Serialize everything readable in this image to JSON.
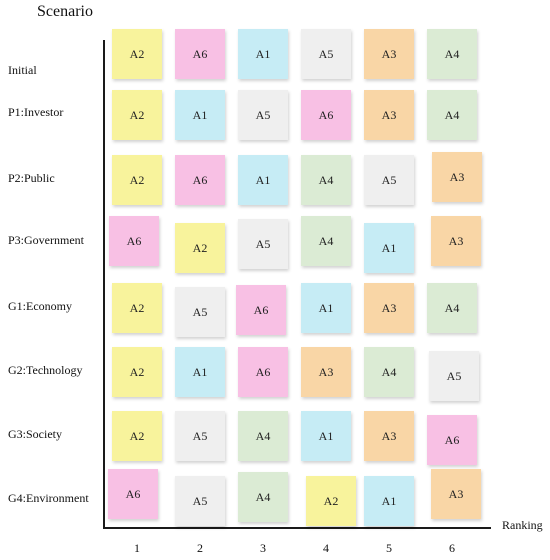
{
  "title": "Scenario",
  "x_axis_label": "Ranking",
  "columns": [
    "1",
    "2",
    "3",
    "4",
    "5",
    "6"
  ],
  "alternative_colors": {
    "A1": "#c6ecf5",
    "A2": "#f8f39c",
    "A3": "#f9d6a6",
    "A4": "#dbebd4",
    "A5": "#efefef",
    "A6": "#f8c0e4"
  },
  "rows": [
    {
      "label": "Initial",
      "ranking": [
        "A2",
        "A6",
        "A1",
        "A5",
        "A3",
        "A4"
      ]
    },
    {
      "label": "P1:Investor",
      "ranking": [
        "A2",
        "A1",
        "A5",
        "A6",
        "A3",
        "A4"
      ]
    },
    {
      "label": "P2:Public",
      "ranking": [
        "A2",
        "A6",
        "A1",
        "A4",
        "A5",
        "A3"
      ]
    },
    {
      "label": "P3:Government",
      "ranking": [
        "A6",
        "A2",
        "A5",
        "A4",
        "A1",
        "A3"
      ]
    },
    {
      "label": "G1:Economy",
      "ranking": [
        "A2",
        "A5",
        "A6",
        "A1",
        "A3",
        "A4"
      ]
    },
    {
      "label": "G2:Technology",
      "ranking": [
        "A2",
        "A1",
        "A6",
        "A3",
        "A4",
        "A5"
      ]
    },
    {
      "label": "G3:Society",
      "ranking": [
        "A2",
        "A5",
        "A4",
        "A1",
        "A3",
        "A6"
      ]
    },
    {
      "label": "G4:Environment",
      "ranking": [
        "A6",
        "A5",
        "A4",
        "A2",
        "A1",
        "A3"
      ]
    }
  ]
}
